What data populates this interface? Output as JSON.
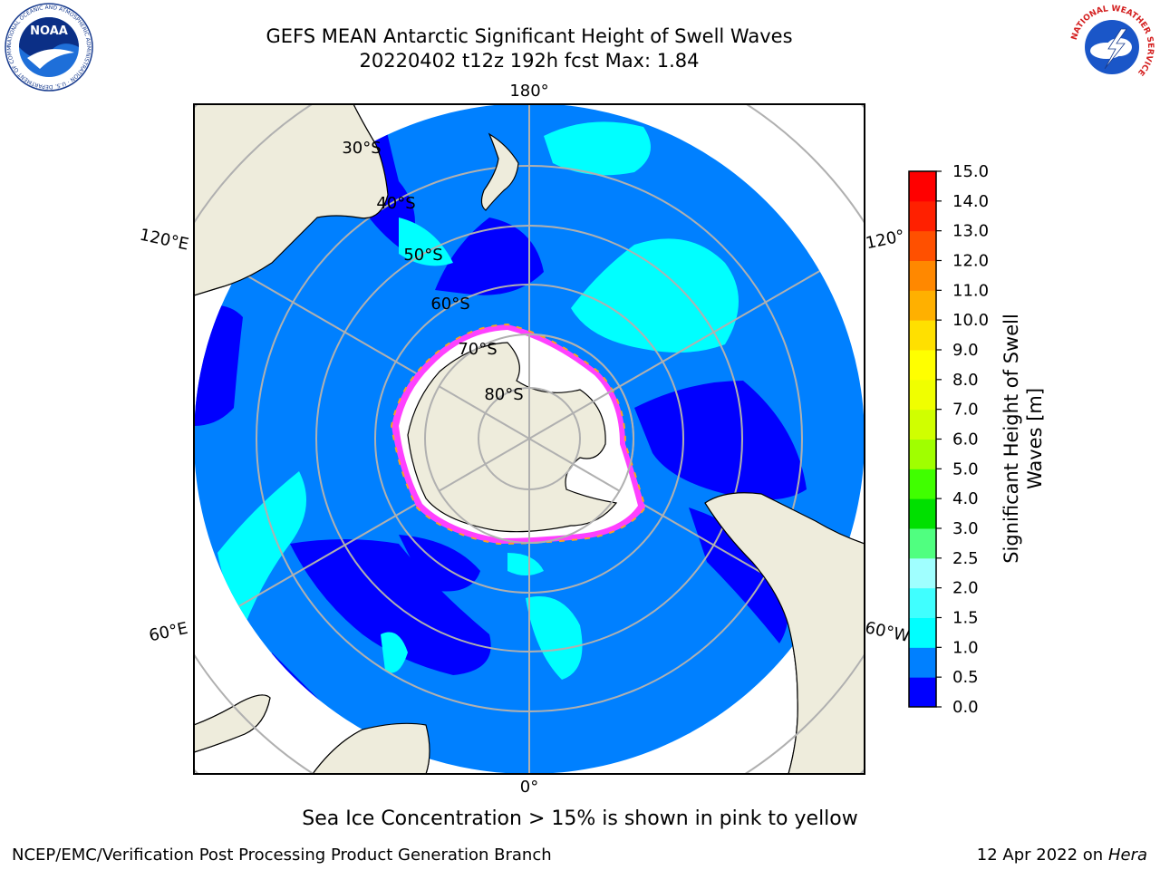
{
  "header": {
    "title_line1": "GEFS MEAN Antarctic Significant Height of Swell Waves",
    "title_line2": "20220402 t12z 192h fcst   Max: 1.84"
  },
  "logos": {
    "noaa_text": "NOAA",
    "noaa_ring_text": "NATIONAL OCEANIC AND ATMOSPHERIC ADMINISTRATION · U.S. DEPARTMENT OF COMMERCE",
    "nws_ring_text": "NATIONAL WEATHER SERVICE"
  },
  "map": {
    "projection": "south-polar-stereographic",
    "center_longitude_bottom": "0°",
    "lon_labels": {
      "top": "180°",
      "bottom": "0°",
      "left_upper": "120°E",
      "left_lower": "60°E",
      "right_upper": "120°",
      "right_lower": "60°W"
    },
    "lat_labels": [
      "30°S",
      "40°S",
      "50°S",
      "60°S",
      "70°S",
      "80°S"
    ],
    "land_color": "#eeecdc",
    "ocean_base_color": "#0080ff"
  },
  "colorbar": {
    "label_line1": "Significant Height of Swell",
    "label_line2": "Waves [m]",
    "ticks": [
      "0.0",
      "0.5",
      "1.0",
      "1.5",
      "2.0",
      "2.5",
      "3.0",
      "4.0",
      "5.0",
      "6.0",
      "7.0",
      "8.0",
      "9.0",
      "10.0",
      "11.0",
      "12.0",
      "13.0",
      "14.0",
      "15.0"
    ],
    "colors": [
      "#0000ff",
      "#0080ff",
      "#00ffff",
      "#40ffff",
      "#a0ffff",
      "#50ff80",
      "#00e000",
      "#40ff00",
      "#a0ff00",
      "#d0ff00",
      "#f0ff00",
      "#ffff00",
      "#ffe000",
      "#ffb000",
      "#ff8800",
      "#ff5000",
      "#ff2000",
      "#ff0000"
    ]
  },
  "caption": "Sea Ice Concentration > 15% is shown in pink to yellow",
  "footer": {
    "left": "NCEP/EMC/Verification Post Processing Product Generation Branch",
    "right_prefix": "12 Apr 2022 on ",
    "right_host": "Hera"
  }
}
